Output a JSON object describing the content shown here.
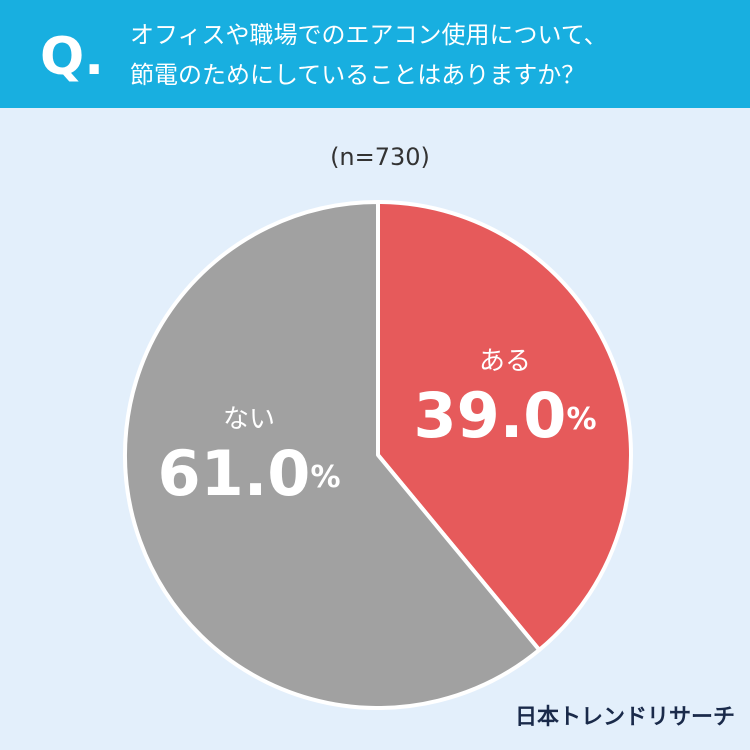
{
  "chart_data": {
    "type": "pie",
    "question_label": "Q.",
    "title_lines": [
      "オフィスや職場でのエアコン使用について、",
      "節電のためにしていることはありますか？"
    ],
    "subtitle": "(n=730)",
    "categories": [
      "ある",
      "ない"
    ],
    "values": [
      39.0,
      61.0
    ],
    "value_labels": [
      "39.0%",
      "61.0%"
    ],
    "colors": [
      "#e65a5b",
      "#a1a1a1"
    ],
    "source": "日本トレンドリサーチ"
  }
}
